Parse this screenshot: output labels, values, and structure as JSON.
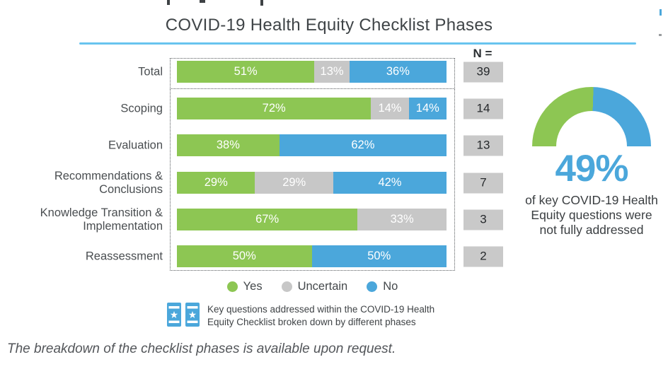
{
  "title": "COVID-19 Health Equity Checklist Phases",
  "n_header": "N =",
  "colors": {
    "yes": "#8DC653",
    "uncertain": "#C7C7C7",
    "no": "#4BA7DB",
    "underline": "#68C4EF",
    "n_box_bg": "#C9C9C9",
    "accent_blue_text": "#4BA7DB"
  },
  "chart_data": {
    "type": "bar",
    "orientation": "horizontal",
    "stacked": true,
    "title": "COVID-19 Health Equity Checklist Phases",
    "categories": [
      "Total",
      "Scoping",
      "Evaluation",
      "Recommendations & Conclusions",
      "Knowledge Transition & Implementation",
      "Reassessment"
    ],
    "series": [
      {
        "name": "Yes",
        "color": "#8DC653",
        "values": [
          51,
          72,
          38,
          29,
          67,
          50
        ]
      },
      {
        "name": "Uncertain",
        "color": "#C7C7C7",
        "values": [
          13,
          14,
          0,
          29,
          33,
          0
        ]
      },
      {
        "name": "No",
        "color": "#4BA7DB",
        "values": [
          36,
          14,
          62,
          42,
          0,
          50
        ]
      }
    ],
    "n_values": [
      39,
      14,
      13,
      7,
      3,
      2
    ],
    "value_suffix": "%",
    "xlim": [
      0,
      100
    ],
    "legend_position": "bottom",
    "grid": false
  },
  "rows": [
    {
      "label_lines": [
        "Total"
      ],
      "n": "39",
      "segments": [
        {
          "key": "yes",
          "value": 51,
          "label": "51%"
        },
        {
          "key": "uncertain",
          "value": 13,
          "label": "13%"
        },
        {
          "key": "no",
          "value": 36,
          "label": "36%"
        }
      ]
    },
    {
      "label_lines": [
        "Scoping"
      ],
      "n": "14",
      "segments": [
        {
          "key": "yes",
          "value": 72,
          "label": "72%"
        },
        {
          "key": "uncertain",
          "value": 14,
          "label": "14%"
        },
        {
          "key": "no",
          "value": 14,
          "label": "14%"
        }
      ]
    },
    {
      "label_lines": [
        "Evaluation"
      ],
      "n": "13",
      "segments": [
        {
          "key": "yes",
          "value": 38,
          "label": "38%"
        },
        {
          "key": "no",
          "value": 62,
          "label": "62%"
        }
      ]
    },
    {
      "label_lines": [
        "Recommendations &",
        "Conclusions"
      ],
      "n": "7",
      "segments": [
        {
          "key": "yes",
          "value": 29,
          "label": "29%"
        },
        {
          "key": "uncertain",
          "value": 29,
          "label": "29%"
        },
        {
          "key": "no",
          "value": 42,
          "label": "42%"
        }
      ]
    },
    {
      "label_lines": [
        "Knowledge Transition &",
        "Implementation"
      ],
      "n": "3",
      "segments": [
        {
          "key": "yes",
          "value": 67,
          "label": "67%"
        },
        {
          "key": "uncertain",
          "value": 33,
          "label": "33%"
        }
      ]
    },
    {
      "label_lines": [
        "Reassessment"
      ],
      "n": "2",
      "segments": [
        {
          "key": "yes",
          "value": 50,
          "label": "50%"
        },
        {
          "key": "no",
          "value": 50,
          "label": "50%"
        }
      ]
    }
  ],
  "legend": [
    {
      "key": "yes",
      "label": "Yes"
    },
    {
      "key": "uncertain",
      "label": "Uncertain"
    },
    {
      "key": "no",
      "label": "No"
    }
  ],
  "caption": {
    "icon": "checklist-badges-icon",
    "lines": [
      "Key questions addressed within the COVID-19 Health",
      "Equity Checklist broken down by different phases"
    ]
  },
  "gauge": {
    "value_label": "49%",
    "green_pct": 51,
    "blue_pct": 49,
    "description_lines": [
      "of key COVID-19 Health",
      "Equity questions were",
      "not fully addressed"
    ]
  },
  "footnote": "The breakdown of the checklist phases is available upon request."
}
